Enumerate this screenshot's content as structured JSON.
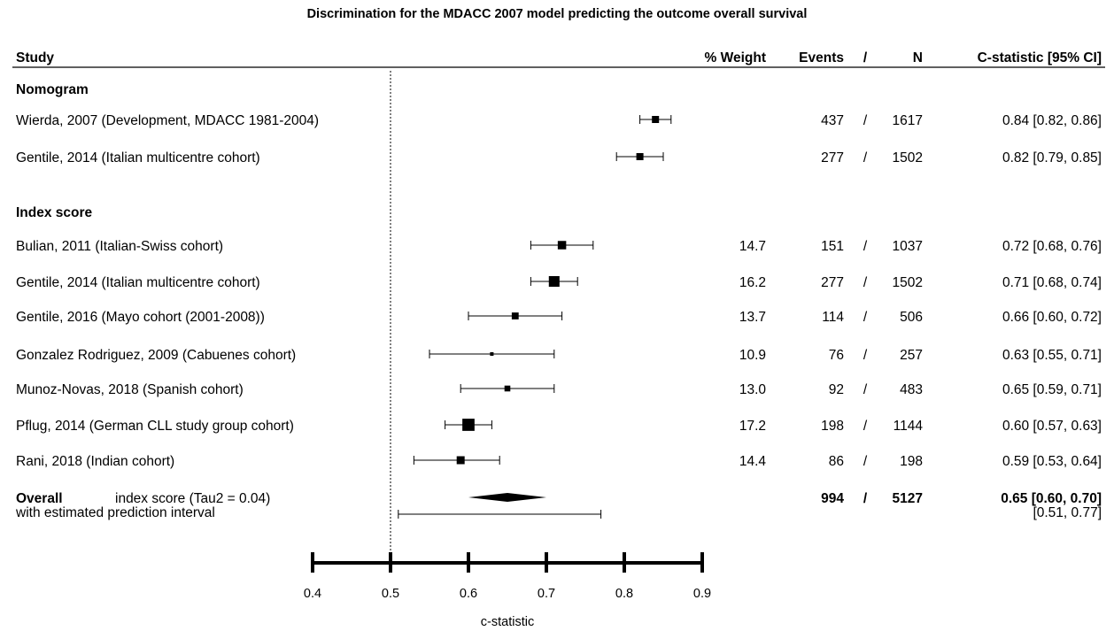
{
  "chart_data": {
    "type": "forest",
    "title": "Discrimination for the MDACC 2007 model predicting the outcome overall survival",
    "xlabel": "c-statistic",
    "xlim": [
      0.4,
      0.9
    ],
    "x_ticks": [
      "0.4",
      "0.5",
      "0.6",
      "0.7",
      "0.8",
      "0.9"
    ],
    "reference_line": 0.5,
    "columns": [
      "Study",
      "% Weight",
      "Events",
      "/",
      "N",
      "C-statistic [95% CI]"
    ],
    "groups": [
      {
        "label": "Nomogram",
        "studies": [
          {
            "study": "Wierda, 2007 (Development, MDACC 1981-2004)",
            "weight": "",
            "events": "437",
            "n": "1617",
            "est": 0.84,
            "lo": 0.82,
            "hi": 0.86,
            "ci_text": "0.84 [0.82, 0.86]"
          },
          {
            "study": "Gentile, 2014 (Italian multicentre cohort)",
            "weight": "",
            "events": "277",
            "n": "1502",
            "est": 0.82,
            "lo": 0.79,
            "hi": 0.85,
            "ci_text": "0.82 [0.79, 0.85]"
          }
        ]
      },
      {
        "label": "Index score",
        "studies": [
          {
            "study": "Bulian, 2011 (Italian-Swiss cohort)",
            "weight": "14.7",
            "events": "151",
            "n": "1037",
            "est": 0.72,
            "lo": 0.68,
            "hi": 0.76,
            "ci_text": "0.72 [0.68, 0.76]"
          },
          {
            "study": "Gentile, 2014 (Italian multicentre cohort)",
            "weight": "16.2",
            "events": "277",
            "n": "1502",
            "est": 0.71,
            "lo": 0.68,
            "hi": 0.74,
            "ci_text": "0.71 [0.68, 0.74]"
          },
          {
            "study": "Gentile, 2016 (Mayo cohort (2001-2008))",
            "weight": "13.7",
            "events": "114",
            "n": "506",
            "est": 0.66,
            "lo": 0.6,
            "hi": 0.72,
            "ci_text": "0.66 [0.60, 0.72]"
          },
          {
            "study": "Gonzalez Rodriguez, 2009 (Cabuenes cohort)",
            "weight": "10.9",
            "events": "76",
            "n": "257",
            "est": 0.63,
            "lo": 0.55,
            "hi": 0.71,
            "ci_text": "0.63 [0.55, 0.71]"
          },
          {
            "study": "Munoz-Novas, 2018 (Spanish cohort)",
            "weight": "13.0",
            "events": "92",
            "n": "483",
            "est": 0.65,
            "lo": 0.59,
            "hi": 0.71,
            "ci_text": "0.65 [0.59, 0.71]"
          },
          {
            "study": "Pflug, 2014 (German CLL study group cohort)",
            "weight": "17.2",
            "events": "198",
            "n": "1144",
            "est": 0.6,
            "lo": 0.57,
            "hi": 0.63,
            "ci_text": "0.60 [0.57, 0.63]"
          },
          {
            "study": "Rani, 2018 (Indian cohort)",
            "weight": "14.4",
            "events": "86",
            "n": "198",
            "est": 0.59,
            "lo": 0.53,
            "hi": 0.64,
            "ci_text": "0.59 [0.53, 0.64]"
          }
        ]
      }
    ],
    "overall": {
      "label": "Overall",
      "desc": "index score (Tau2 = 0.04)",
      "pi_label": "with estimated prediction interval",
      "events": "994",
      "n": "5127",
      "est": 0.65,
      "lo": 0.6,
      "hi": 0.7,
      "ci_text": "0.65 [0.60, 0.70]",
      "pi_lo": 0.51,
      "pi_hi": 0.77,
      "pi_text": "[0.51, 0.77]"
    }
  }
}
